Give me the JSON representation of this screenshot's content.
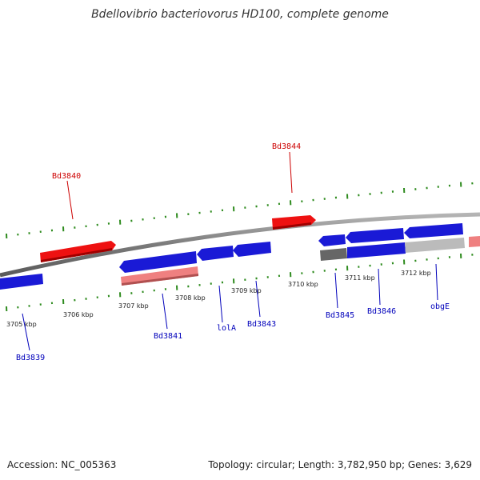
{
  "title": "Bdellovibrio bacteriovorus HD100, complete genome",
  "footer": {
    "accession": "Accession: NC_005363",
    "summary": "Topology: circular; Length: 3,782,950 bp; Genes: 3,629"
  },
  "colors": {
    "forward_gene": "#ee1111",
    "forward_gene_light": "#ef8080",
    "reverse_gene": "#1a1ad6",
    "reverse_gene_grey": "#666666",
    "reverse_gene_lightgrey": "#bbbbbb",
    "backbone": "#888888",
    "tick": "#2e8b1e",
    "forward_label": "#cc0000",
    "reverse_label": "#0000bb"
  },
  "scale_labels": [
    "3705 kbp",
    "3706 kbp",
    "3707 kbp",
    "3708 kbp",
    "3709 kbp",
    "3710 kbp",
    "3711 kbp",
    "3712 kbp"
  ],
  "genes": [
    {
      "label": "Bd3840",
      "strand": "forward"
    },
    {
      "label": "Bd3844",
      "strand": "forward"
    },
    {
      "label": "Bd3839",
      "strand": "reverse"
    },
    {
      "label": "Bd3841",
      "strand": "reverse"
    },
    {
      "label": "lolA",
      "strand": "reverse"
    },
    {
      "label": "Bd3843",
      "strand": "reverse"
    },
    {
      "label": "Bd3845",
      "strand": "reverse"
    },
    {
      "label": "Bd3846",
      "strand": "reverse"
    },
    {
      "label": "obgE",
      "strand": "reverse"
    }
  ]
}
